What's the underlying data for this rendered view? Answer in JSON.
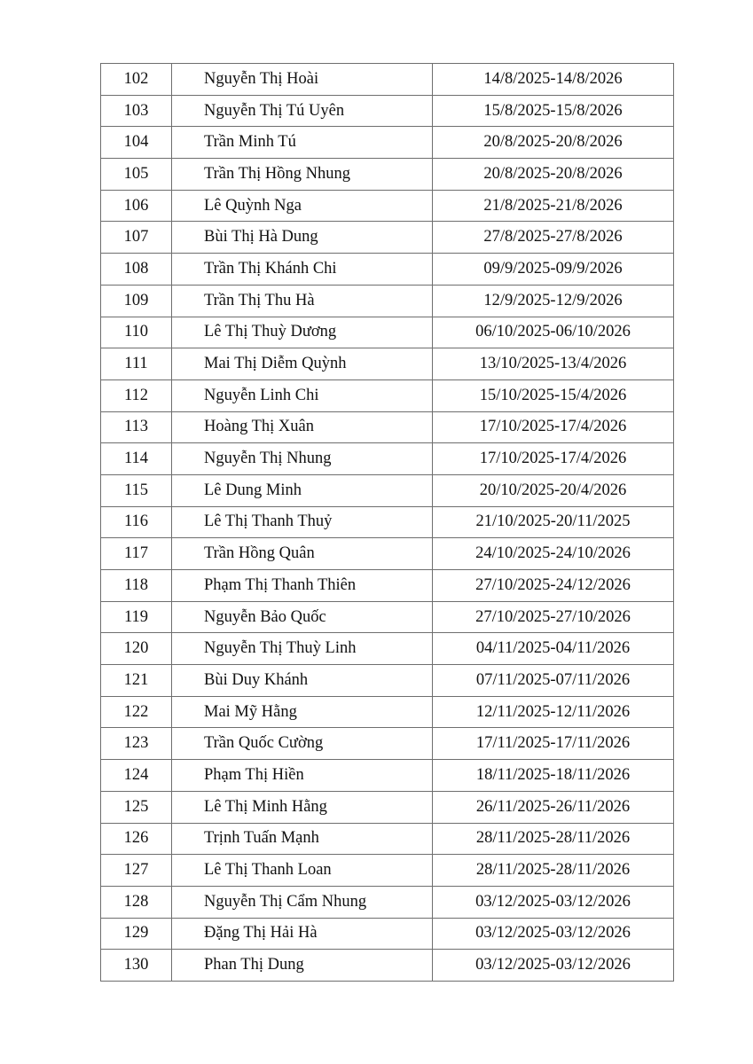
{
  "rows": [
    {
      "no": "102",
      "name": "Nguyễn Thị Hoài",
      "period": "14/8/2025-14/8/2026"
    },
    {
      "no": "103",
      "name": "Nguyễn Thị Tú Uyên",
      "period": "15/8/2025-15/8/2026"
    },
    {
      "no": "104",
      "name": "Trần Minh Tú",
      "period": "20/8/2025-20/8/2026"
    },
    {
      "no": "105",
      "name": "Trần Thị Hồng Nhung",
      "period": "20/8/2025-20/8/2026"
    },
    {
      "no": "106",
      "name": "Lê Quỳnh Nga",
      "period": "21/8/2025-21/8/2026"
    },
    {
      "no": "107",
      "name": "Bùi Thị Hà Dung",
      "period": "27/8/2025-27/8/2026"
    },
    {
      "no": "108",
      "name": "Trần Thị Khánh Chi",
      "period": "09/9/2025-09/9/2026"
    },
    {
      "no": "109",
      "name": "Trần Thị Thu Hà",
      "period": "12/9/2025-12/9/2026"
    },
    {
      "no": "110",
      "name": "Lê Thị Thuỳ Dương",
      "period": "06/10/2025-06/10/2026"
    },
    {
      "no": "111",
      "name": "Mai Thị Diễm Quỳnh",
      "period": "13/10/2025-13/4/2026"
    },
    {
      "no": "112",
      "name": "Nguyễn Linh Chi",
      "period": "15/10/2025-15/4/2026"
    },
    {
      "no": "113",
      "name": "Hoàng Thị Xuân",
      "period": "17/10/2025-17/4/2026"
    },
    {
      "no": "114",
      "name": "Nguyễn Thị Nhung",
      "period": "17/10/2025-17/4/2026"
    },
    {
      "no": "115",
      "name": "Lê Dung Minh",
      "period": "20/10/2025-20/4/2026"
    },
    {
      "no": "116",
      "name": "Lê Thị Thanh Thuỷ",
      "period": "21/10/2025-20/11/2025"
    },
    {
      "no": "117",
      "name": "Trần Hồng Quân",
      "period": "24/10/2025-24/10/2026"
    },
    {
      "no": "118",
      "name": "Phạm Thị Thanh Thiên",
      "period": "27/10/2025-24/12/2026"
    },
    {
      "no": "119",
      "name": "Nguyễn Bảo Quốc",
      "period": "27/10/2025-27/10/2026"
    },
    {
      "no": "120",
      "name": "Nguyễn Thị Thuỳ Linh",
      "period": "04/11/2025-04/11/2026"
    },
    {
      "no": "121",
      "name": "Bùi Duy Khánh",
      "period": "07/11/2025-07/11/2026"
    },
    {
      "no": "122",
      "name": "Mai Mỹ Hằng",
      "period": "12/11/2025-12/11/2026"
    },
    {
      "no": "123",
      "name": "Trần Quốc Cường",
      "period": "17/11/2025-17/11/2026"
    },
    {
      "no": "124",
      "name": "Phạm Thị Hiền",
      "period": "18/11/2025-18/11/2026"
    },
    {
      "no": "125",
      "name": "Lê Thị Minh Hằng",
      "period": "26/11/2025-26/11/2026"
    },
    {
      "no": "126",
      "name": "Trịnh Tuấn Mạnh",
      "period": "28/11/2025-28/11/2026"
    },
    {
      "no": "127",
      "name": "Lê Thị Thanh Loan",
      "period": "28/11/2025-28/11/2026"
    },
    {
      "no": "128",
      "name": "Nguyễn Thị Cẩm Nhung",
      "period": "03/12/2025-03/12/2026"
    },
    {
      "no": "129",
      "name": "Đặng Thị Hải Hà",
      "period": "03/12/2025-03/12/2026"
    },
    {
      "no": "130",
      "name": "Phan Thị Dung",
      "period": "03/12/2025-03/12/2026"
    }
  ]
}
